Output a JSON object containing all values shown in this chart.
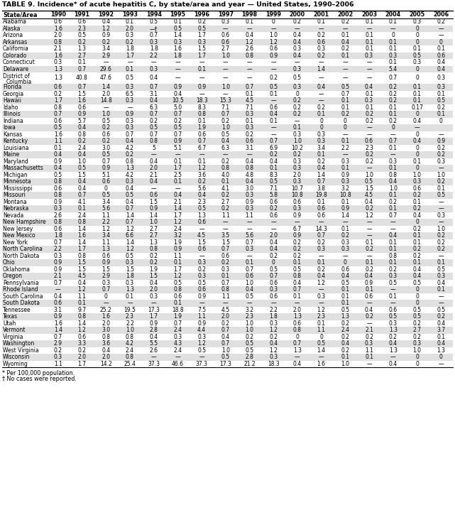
{
  "title": "TABLE 9. Incidence* of acute hepatitis C, by state/area and year — United States, 1990–2006",
  "columns": [
    "State/Area",
    "1990",
    "1991",
    "1992",
    "1993",
    "1994",
    "1995",
    "1996",
    "1997",
    "1998",
    "1999",
    "2000",
    "2001",
    "2002",
    "2003",
    "2004",
    "2005",
    "2006"
  ],
  "rows": [
    [
      "Alabama",
      "0.6",
      "0.6",
      "0.4",
      "0.1",
      "0.5",
      "0.1",
      "0.2",
      "0.3",
      "0.1",
      "0",
      "0.2",
      "0.1",
      "0.2",
      "0.1",
      "0.1",
      "0.3",
      "0.2"
    ],
    [
      "Alaska",
      "1.6",
      "2.3",
      "1.2",
      "2.0",
      "—†",
      "0.5",
      "0.5",
      "—",
      "—",
      "—",
      "—",
      "—",
      "—",
      "—",
      "—",
      "0",
      "—"
    ],
    [
      "Arizona",
      "2.0",
      "0.5",
      "0.9",
      "0.3",
      "0.7",
      "1.4",
      "1.7",
      "0.6",
      "0.4",
      "1.0",
      "0.4",
      "0.2",
      "0.1",
      "0.1",
      "0",
      "0",
      "—"
    ],
    [
      "Arkansas",
      "0.8",
      "0.2",
      "0.2",
      "0.2",
      "0.3",
      "0.3",
      "0.3",
      "0.6",
      "1.2",
      "1.2",
      "0.4",
      "0.6",
      "0.4",
      "0.1",
      "0.1",
      "0",
      "0"
    ],
    [
      "California",
      "2.1",
      "1.3",
      "3.4",
      "1.8",
      "1.8",
      "1.6",
      "1.5",
      "2.7",
      "2.6",
      "0.6",
      "0.3",
      "0.3",
      "0.2",
      "0.1",
      "0.1",
      "0.1",
      "0.1"
    ],
    [
      "Colorado",
      "1.6",
      "2.7",
      "2.9",
      "1.7",
      "2.2",
      "1.8",
      "1.7",
      "1.0",
      "0.8",
      "0.9",
      "0.4",
      "0.2",
      "0.1",
      "0.3",
      "0.3",
      "0.5",
      "0.6"
    ],
    [
      "Connecticut",
      "0.3",
      "0.1",
      "—",
      "—",
      "—",
      "—",
      "—",
      "—",
      "—",
      "—",
      "—",
      "—",
      "—",
      "—",
      "0.1",
      "0.3",
      "0.4"
    ],
    [
      "Delaware",
      "1.3",
      "0.7",
      "29.6",
      "0.1",
      "0.3",
      "—",
      "0.1",
      "—",
      "—",
      "—",
      "0.3",
      "1.4",
      "—",
      "—",
      "5.4",
      "0",
      "0.4"
    ],
    [
      "District of\nColumbia",
      "1.3",
      "40.8",
      "47.6",
      "0.5",
      "0.4",
      "—",
      "—",
      "—",
      "—",
      "0.2",
      "0.5",
      "—",
      "—",
      "—",
      "0.7",
      "0",
      "0.3"
    ],
    [
      "Florida",
      "0.6",
      "0.7",
      "1.4",
      "0.3",
      "0.7",
      "0.9",
      "0.9",
      "1.0",
      "0.7",
      "0.5",
      "0.3",
      "0.4",
      "0.5",
      "0.4",
      "0.2",
      "0.1",
      "0.3"
    ],
    [
      "Georgia",
      "0.2",
      "1.5",
      "2.0",
      "6.5",
      "3.1",
      "0.4",
      "—",
      "—",
      "0.1",
      "0.1",
      "0",
      "—",
      "0.7",
      "0.1",
      "0.2",
      "0.1",
      "0.1"
    ],
    [
      "Hawaii",
      "1.7",
      "1.6",
      "14.8",
      "0.3",
      "0.4",
      "10.5",
      "18.3",
      "15.3",
      "4.5",
      "—",
      "0.2",
      "—",
      "0.1",
      "0.3",
      "0.2",
      "0.1",
      "0.5"
    ],
    [
      "Idaho",
      "0.8",
      "0.6",
      "—",
      "—",
      "6.3",
      "5.0",
      "8.3",
      "7.1",
      "7.1",
      "0.6",
      "0.2",
      "0.2",
      "0.1",
      "0.1",
      "0.1",
      "0.17",
      "0.2"
    ],
    [
      "Illinois",
      "0.7",
      "0.9",
      "1.0",
      "0.9",
      "0.7",
      "0.7",
      "0.8",
      "0.7",
      "0.3",
      "0.4",
      "0.2",
      "0.1",
      "0.2",
      "0.2",
      "0.1",
      "0",
      "0.1"
    ],
    [
      "Indiana",
      "0.6",
      "5.7",
      "0.5",
      "0.3",
      "0.2",
      "0.2",
      "0.1",
      "0.2",
      "0.1",
      "0.1",
      "—",
      "0",
      "0",
      "0.2",
      "0.2",
      "0.4",
      "0"
    ],
    [
      "Iowa",
      "0.5",
      "0.4",
      "0.2",
      "0.3",
      "0.5",
      "0.5",
      "1.9",
      "1.0",
      "0.3",
      "—",
      "0.1",
      "0",
      "0",
      "—",
      "0",
      "—",
      ""
    ],
    [
      "Kansas",
      "1.6",
      "0.8",
      "0.6",
      "0.7",
      "0.7",
      "0.7",
      "0.6",
      "0.5",
      "0.2",
      "—",
      "0.3",
      "0.3",
      "—",
      "—",
      "—",
      "0",
      "—"
    ],
    [
      "Kentucky",
      "1.1",
      "0.2",
      "0.2",
      "0.4",
      "0.8",
      "0.9",
      "0.7",
      "0.4",
      "0.6",
      "0.7",
      "1.0",
      "0.3",
      "0.1",
      "0.6",
      "0.7",
      "0.4",
      "0.9"
    ],
    [
      "Louisiana",
      "0.1",
      "2.4",
      "3.0",
      "4.2",
      "5",
      "5.1",
      "6.7",
      "6.3",
      "3.1",
      "6.9",
      "10.2",
      "3.4",
      "2.2",
      "2.3",
      "0.1",
      "0",
      "0.2"
    ],
    [
      "Maine",
      "0.4",
      "0.4",
      "0.5",
      "0.2",
      "—",
      "—",
      "—",
      "—",
      "—",
      "0.2",
      "0.2",
      "0.1",
      "—",
      "0.2",
      "—",
      "0",
      "0.2"
    ],
    [
      "Maryland",
      "0.9",
      "1.0",
      "0.7",
      "0.8",
      "0.4",
      "0.1",
      "0.1",
      "0.2",
      "0.4",
      "0.4",
      "0.3",
      "0.2",
      "0.3",
      "0.2",
      "0.3",
      "0.1",
      "0.3"
    ],
    [
      "Massachusetts",
      "0.4",
      "0.5",
      "0.9",
      "1.3",
      "2.0",
      "1.7",
      "1.2",
      "0.8",
      "0.8",
      "0.1",
      "0.3",
      "0.4",
      "0.1",
      "—",
      "0.1",
      "0",
      "—"
    ],
    [
      "Michigan",
      "0.5",
      "1.5",
      "5.1",
      "4.2",
      "2.1",
      "2.5",
      "3.6",
      "4.0",
      "4.8",
      "8.3",
      "2.0",
      "1.4",
      "0.9",
      "1.0",
      "0.8",
      "1.0",
      "1.0"
    ],
    [
      "Minnesota",
      "0.8",
      "0.4",
      "0.6",
      "0.3",
      "0.4",
      "0.1",
      "0.2",
      "0.1",
      "0.4",
      "0.5",
      "0.3",
      "0.7",
      "0.3",
      "0.5",
      "0.4",
      "0.3",
      "0.2"
    ],
    [
      "Mississippi",
      "0.6",
      "0.4",
      "0",
      "0.4",
      "—",
      "—",
      "5.6",
      "4.1",
      "3.0",
      "7.1",
      "10.7",
      "3.8",
      "3.2",
      "1.5",
      "1.0",
      "0.6",
      "0.1"
    ],
    [
      "Missouri",
      "0.8",
      "0.7",
      "0.5",
      "0.5",
      "0.6",
      "0.4",
      "0.4",
      "0.2",
      "0.3",
      "5.8",
      "10.8",
      "19.8",
      "10.8",
      "4.5",
      "0.1",
      "0.2",
      "0.5"
    ],
    [
      "Montana",
      "0.9",
      "4.1",
      "3.4",
      "0.4",
      "1.5",
      "2.1",
      "2.3",
      "2.7",
      "0.9",
      "0.6",
      "0.6",
      "0.1",
      "0.1",
      "0.4",
      "0.2",
      "0.1",
      "—"
    ],
    [
      "Nebraska",
      "0.3",
      "0.1",
      "5.6",
      "0.7",
      "0.9",
      "1.4",
      "0.5",
      "0.2",
      "0.3",
      "0.2",
      "0.3",
      "0.6",
      "0.9",
      "0.2",
      "0.1",
      "0.2",
      "—"
    ],
    [
      "Nevada",
      "2.6",
      "2.4",
      "1.1",
      "1.4",
      "1.4",
      "1.7",
      "1.3",
      "1.1",
      "1.1",
      "0.6",
      "0.9",
      "0.6",
      "1.4",
      "1.2",
      "0.7",
      "0.4",
      "0.3"
    ],
    [
      "New Hampshire",
      "0.8",
      "0.8",
      "2.2",
      "0.7",
      "1.0",
      "1.2",
      "0.6",
      "—",
      "—",
      "—",
      "—",
      "—",
      "—",
      "—",
      "—",
      "0",
      "—"
    ],
    [
      "New Jersey",
      "0.6",
      "1.4",
      "1.2",
      "1.2",
      "2.7",
      "2.4",
      "—",
      "—",
      "—",
      "—",
      "6.7",
      "14.3",
      "0.1",
      "—",
      "—",
      "0.2",
      "1.0"
    ],
    [
      "New Mexico",
      "1.8",
      "1.6",
      "3.4",
      "6.6",
      "2.7",
      "3.2",
      "4.5",
      "3.5",
      "5.6",
      "2.0",
      "0.9",
      "0.7",
      "0.2",
      "—",
      "0.4",
      "0.1",
      "0.2"
    ],
    [
      "New York",
      "0.7",
      "1.4",
      "1.1",
      "1.4",
      "1.3",
      "1.9",
      "1.5",
      "1.5",
      "0.7",
      "0.4",
      "0.2",
      "0.2",
      "0.3",
      "0.1",
      "0.1",
      "0.1",
      "0.2"
    ],
    [
      "North Carolina",
      "2.2",
      "1.7",
      "1.3",
      "1.2",
      "0.8",
      "0.9",
      "0.6",
      "0.7",
      "0.3",
      "0.4",
      "0.2",
      "0.3",
      "0.3",
      "0.2",
      "0.1",
      "0.2",
      "0.2"
    ],
    [
      "North Dakota",
      "0.3",
      "0.8",
      "0.6",
      "0.5",
      "0.2",
      "1.1",
      "—",
      "0.6",
      "—",
      "0.2",
      "0.2",
      "—",
      "—",
      "—",
      "0.8",
      "0.2",
      "—"
    ],
    [
      "Ohio",
      "0.9",
      "1.5",
      "0.9",
      "0.3",
      "0.2",
      "0.1",
      "0.3",
      "0.2",
      "0.1",
      "0",
      "0.1",
      "0.1",
      "0",
      "0.1",
      "0.1",
      "0.1",
      "0.1"
    ],
    [
      "Oklahoma",
      "0.9",
      "1.5",
      "1.5",
      "1.5",
      "1.9",
      "1.7",
      "0.2",
      "0.3",
      "0.7",
      "0.5",
      "0.5",
      "0.2",
      "0.6",
      "0.2",
      "0.2",
      "0.4",
      "0.5"
    ],
    [
      "Oregon",
      "2.1",
      "4.5",
      "2.9",
      "1.8",
      "1.5",
      "1.2",
      "0.3",
      "0.1",
      "0.6",
      "0.7",
      "0.8",
      "0.4",
      "0.4",
      "0.4",
      "0.3",
      "0.4",
      "0.3"
    ],
    [
      "Pennsylvania",
      "0.7",
      "0.4",
      "0.3",
      "0.3",
      "0.4",
      "0.5",
      "0.5",
      "0.7",
      "1.0",
      "0.6",
      "0.4",
      "1.2",
      "0.5",
      "0.9",
      "0.5",
      "0.5",
      "0.4"
    ],
    [
      "Rhode Island",
      "—",
      "1.2",
      "0.7",
      "1.3",
      "2.0",
      "0.8",
      "0.6",
      "0.8",
      "0.4",
      "0.3",
      "0.7",
      "—",
      "0.1",
      "0.1",
      "—",
      "0",
      "0.1"
    ],
    [
      "South Carolina",
      "0.4",
      "1.1",
      "0",
      "0.1",
      "0.3",
      "0.6",
      "0.9",
      "1.1",
      "0.5",
      "0.6",
      "0.1",
      "0.3",
      "0.1",
      "0.6",
      "0.1",
      "0",
      "—"
    ],
    [
      "South Dakota",
      "0.6",
      "0.1",
      "—",
      "—",
      "—",
      "0.1",
      "—",
      "—",
      "—",
      "—",
      "—",
      "—",
      "0.1",
      "—",
      "—",
      "0",
      "—"
    ],
    [
      "Tennessee",
      "3.1",
      "9.7",
      "25.2",
      "19.5",
      "17.3",
      "18.8",
      "7.5",
      "4.5",
      "3.2",
      "2.2",
      "2.0",
      "1.2",
      "0.5",
      "0.4",
      "0.6",
      "0.5",
      "0.5"
    ],
    [
      "Texas",
      "0.9",
      "0.8",
      "1.6",
      "2.3",
      "1.7",
      "1.9",
      "1.1",
      "2.0",
      "2.3",
      "1.8",
      "1.3",
      "2.3",
      "1.3",
      "0.2",
      "0.5",
      "0.5",
      "0.2"
    ],
    [
      "Utah",
      "1.6",
      "1.4",
      "2.0",
      "2.2",
      "0.9",
      "0.7",
      "0.9",
      "0.2",
      "1.0",
      "0.3",
      "0.6",
      "0.1",
      "0.2",
      "—",
      "0.3",
      "0.2",
      "0.4"
    ],
    [
      "Vermont",
      "1.4",
      "1.2",
      "3.0",
      "1.0",
      "2.8",
      "2.4",
      "4.4",
      "0.7",
      "1.0",
      "1.2",
      "0.8",
      "1.1",
      "2.4",
      "2.1",
      "1.3",
      "2.7",
      "3.7"
    ],
    [
      "Virginia",
      "0.7",
      "0.6",
      "0.8",
      "0.8",
      "0.4",
      "0.3",
      "0.3",
      "0.4",
      "0.2",
      "0.2",
      "0",
      "0",
      "0.2",
      "0.2",
      "0.2",
      "0.2",
      "0.1"
    ],
    [
      "Washington",
      "2.9",
      "3.3",
      "3.6",
      "4.2",
      "5.5",
      "4.3",
      "1.2",
      "0.7",
      "0.5",
      "0.4",
      "0.7",
      "0.5",
      "0.4",
      "0.3",
      "0.4",
      "0.3",
      "0.4"
    ],
    [
      "West Virginia",
      "0.2",
      "0.2",
      "0.4",
      "2.4",
      "2.6",
      "2.4",
      "0.5",
      "1.0",
      "0.5",
      "1.2",
      "1.3",
      "1.4",
      "0.2",
      "1.1",
      "1.3",
      "1.0",
      "1.3"
    ],
    [
      "Wisconsin",
      "0.3",
      "2.0",
      "2.0",
      "0.8",
      "—",
      "—",
      "—",
      "0.5",
      "2.8",
      "0.3",
      "—",
      "—",
      "0.1",
      "0.1",
      "—",
      "0",
      "0"
    ],
    [
      "Wyoming",
      "1.1",
      "1.7",
      "14.2",
      "25.4",
      "37.3",
      "46.6",
      "37.3",
      "17.3",
      "21.2",
      "18.3",
      "0.4",
      "1.6",
      "1.0",
      "—",
      "0.4",
      "0",
      "—"
    ]
  ],
  "footnotes": [
    "* Per 100,000 population.",
    "† No cases were reported."
  ],
  "background_color": "#ffffff",
  "alt_row_color": "#e0e0e0",
  "text_color": "#000000",
  "title_fontsize": 6.8,
  "header_fontsize": 5.8,
  "cell_fontsize": 5.5,
  "footnote_fontsize": 5.8
}
